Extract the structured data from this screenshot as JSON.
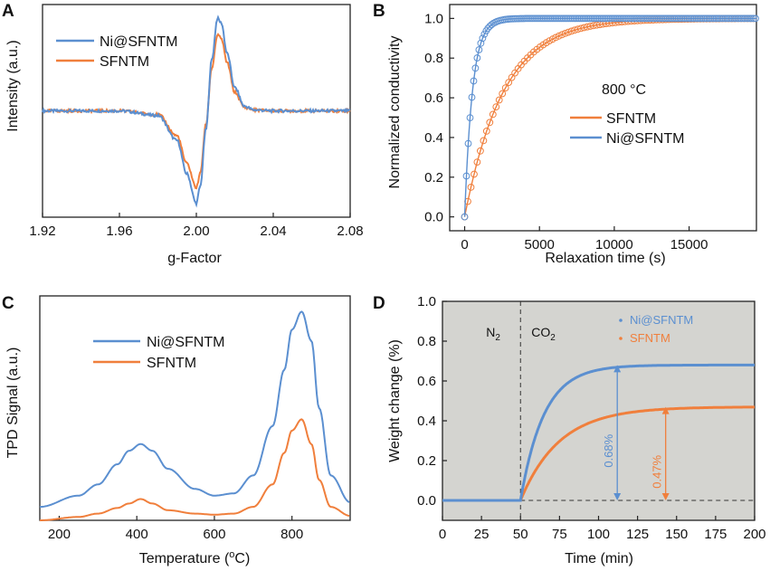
{
  "colors": {
    "blue": "#5b8fd0",
    "orange": "#f07f3c",
    "dark": "#222222",
    "shade": "#d4d4d0"
  },
  "chart_data": [
    {
      "panel": "A",
      "type": "line",
      "xlabel": "g-Factor",
      "ylabel": "Intensity (a.u.)",
      "xlim": [
        1.92,
        2.08
      ],
      "ylim": [
        -1.15,
        1.15
      ],
      "xticks": [
        "1.92",
        "1.96",
        "2.00",
        "2.04",
        "2.08"
      ],
      "legend": [
        "Ni@SFNTM",
        "SFNTM"
      ],
      "series": [
        {
          "name": "Ni@SFNTM",
          "x": [
            1.92,
            1.96,
            1.98,
            1.99,
            1.995,
            2.0,
            2.002,
            2.005,
            2.008,
            2.011,
            2.013,
            2.016,
            2.02,
            2.025,
            2.03,
            2.04,
            2.05,
            2.08
          ],
          "y": [
            0.0,
            0.0,
            -0.05,
            -0.32,
            -0.68,
            -1.0,
            -0.82,
            -0.2,
            0.55,
            1.0,
            0.95,
            0.62,
            0.25,
            0.05,
            0.01,
            0.0,
            0.0,
            0.0
          ]
        },
        {
          "name": "SFNTM",
          "x": [
            1.92,
            1.96,
            1.98,
            1.99,
            1.995,
            2.0,
            2.002,
            2.005,
            2.008,
            2.011,
            2.013,
            2.016,
            2.02,
            2.025,
            2.03,
            2.04,
            2.05,
            2.08
          ],
          "y": [
            0.0,
            0.0,
            -0.04,
            -0.27,
            -0.57,
            -0.83,
            -0.68,
            -0.15,
            0.46,
            0.82,
            0.78,
            0.52,
            0.2,
            0.04,
            0.01,
            0.0,
            0.0,
            0.0
          ]
        }
      ]
    },
    {
      "panel": "B",
      "type": "scatter",
      "xlabel": "Relaxation time (s)",
      "ylabel": "Normalized conductivity",
      "xlim": [
        -1000,
        19500
      ],
      "ylim": [
        -0.07,
        1.07
      ],
      "xticks": [
        0,
        5000,
        10000,
        15000
      ],
      "yticks": [
        0.0,
        0.2,
        0.4,
        0.6,
        0.8,
        1.0
      ],
      "annotation": "800 °C",
      "legend": [
        "SFNTM",
        "Ni@SFNTM"
      ],
      "series": [
        {
          "name": "SFNTM",
          "tau": 2600,
          "t0": 0
        },
        {
          "name": "Ni@SFNTM",
          "tau": 520,
          "t0": 0
        }
      ]
    },
    {
      "panel": "C",
      "type": "line",
      "xlabel": "Temperature (°C)",
      "ylabel": "TPD Signal (a.u.)",
      "xlim": [
        150,
        950
      ],
      "ylim": [
        0,
        1
      ],
      "xticks": [
        200,
        400,
        600,
        800
      ],
      "legend": [
        "Ni@SFNTM",
        "SFNTM"
      ],
      "series": [
        {
          "name": "Ni@SFNTM",
          "x": [
            150,
            250,
            300,
            350,
            380,
            410,
            440,
            480,
            550,
            600,
            650,
            700,
            750,
            780,
            800,
            825,
            850,
            870,
            900,
            950
          ],
          "y": [
            0.06,
            0.11,
            0.16,
            0.25,
            0.31,
            0.34,
            0.31,
            0.23,
            0.14,
            0.11,
            0.12,
            0.2,
            0.42,
            0.67,
            0.85,
            0.93,
            0.8,
            0.5,
            0.2,
            0.08
          ]
        },
        {
          "name": "SFNTM",
          "x": [
            150,
            250,
            300,
            350,
            380,
            410,
            440,
            480,
            550,
            600,
            650,
            700,
            750,
            780,
            800,
            825,
            850,
            870,
            900,
            950
          ],
          "y": [
            0.0,
            0.015,
            0.03,
            0.055,
            0.075,
            0.095,
            0.075,
            0.045,
            0.03,
            0.025,
            0.03,
            0.06,
            0.16,
            0.3,
            0.4,
            0.45,
            0.34,
            0.18,
            0.06,
            0.02
          ]
        }
      ]
    },
    {
      "panel": "D",
      "type": "line",
      "xlabel": "Time (min)",
      "ylabel": "Weight change (%)",
      "xlim": [
        0,
        200
      ],
      "ylim": [
        -0.1,
        1.0
      ],
      "xticks": [
        0,
        25,
        50,
        75,
        100,
        125,
        150,
        175,
        200
      ],
      "yticks": [
        "0.0",
        "0.2",
        "0.4",
        "0.6",
        "0.8",
        "1.0"
      ],
      "switch_time": 50,
      "labels": {
        "n2": "N",
        "n2_sub": "2",
        "co2": "CO",
        "co2_sub": "2"
      },
      "legend": [
        "Ni@SFNTM",
        "SFNTM"
      ],
      "series": [
        {
          "name": "Ni@SFNTM",
          "plateau": 0.68,
          "tau": 15,
          "annotation": "0.68%",
          "arrow_x": 112
        },
        {
          "name": "SFNTM",
          "plateau": 0.47,
          "tau": 25,
          "annotation": "0.47%",
          "arrow_x": 143
        }
      ]
    }
  ],
  "panels": {
    "A": {
      "letter": "A",
      "xlabel": "g-Factor",
      "ylabel": "Intensity (a.u.)",
      "leg1": "Ni@SFNTM",
      "leg2": "SFNTM"
    },
    "B": {
      "letter": "B",
      "xlabel": "Relaxation time (s)",
      "ylabel": "Normalized conductivity",
      "note": "800 °C",
      "leg1": "SFNTM",
      "leg2": "Ni@SFNTM"
    },
    "C": {
      "letter": "C",
      "xlabel": "Temperature (",
      "xlabel_sup": "o",
      "xlabel_end": "C)",
      "ylabel": "TPD Signal (a.u.)",
      "leg1": "Ni@SFNTM",
      "leg2": "SFNTM"
    },
    "D": {
      "letter": "D",
      "xlabel": "Time (min)",
      "ylabel": "Weight change (%)",
      "leg1": "Ni@SFNTM",
      "leg2": "SFNTM"
    }
  }
}
